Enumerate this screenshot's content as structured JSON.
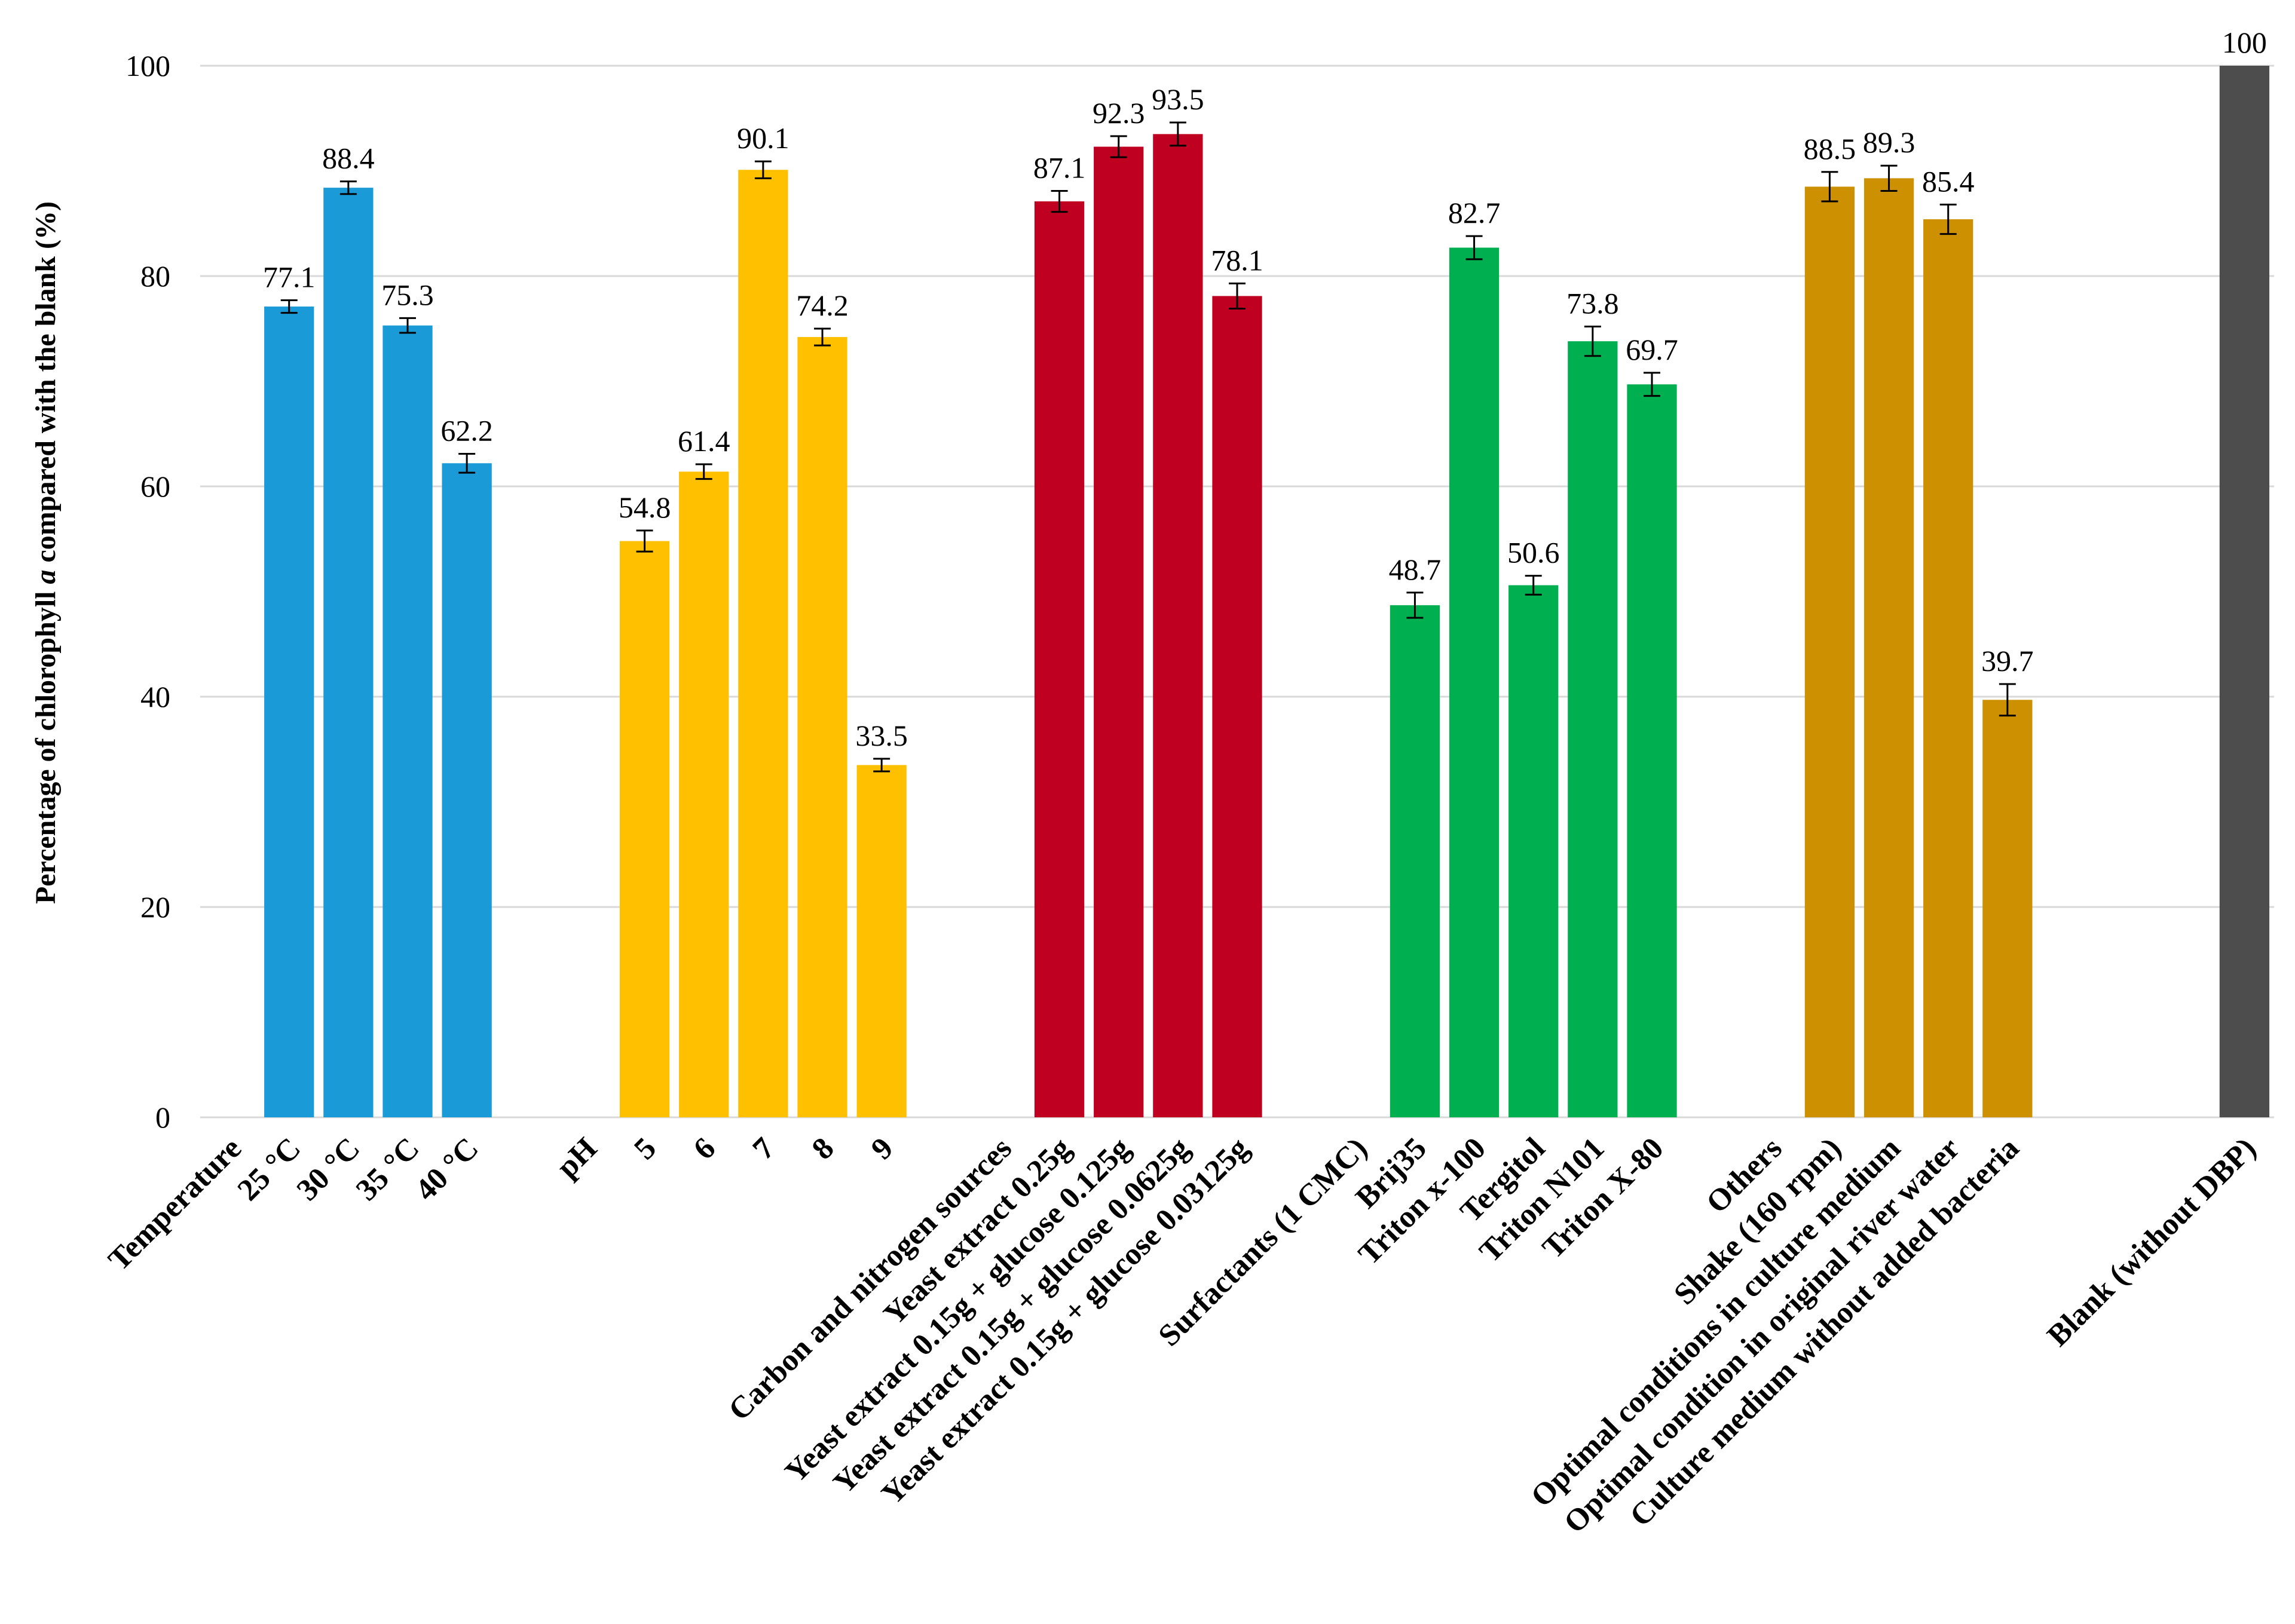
{
  "chart_data": {
    "type": "bar",
    "ylabel_prefix": "Percentage of chlorophyll",
    "ylabel_italic": "a",
    "ylabel_suffix": "compared with the blank (%)",
    "ylim": [
      0,
      100
    ],
    "yticks": [
      "0",
      "20",
      "40",
      "60",
      "80",
      "100"
    ],
    "colors": {
      "temperature": "#1a9bd7",
      "ph": "#ffc000",
      "carbon": "#c00020",
      "surfactants": "#00b050",
      "others": "#cc9000",
      "blank": "#4d4d4d"
    },
    "categories": [
      {
        "label": "Temperature",
        "group": "header"
      },
      {
        "label": "25 °C",
        "value": 77.1,
        "data_label": "77.1",
        "err": 0.6,
        "group": "temperature"
      },
      {
        "label": "30 °C",
        "value": 88.4,
        "data_label": "88.4",
        "err": 0.6,
        "group": "temperature"
      },
      {
        "label": "35 °C",
        "value": 75.3,
        "data_label": "75.3",
        "err": 0.7,
        "group": "temperature"
      },
      {
        "label": "40 °C",
        "value": 62.2,
        "data_label": "62.2",
        "err": 0.9,
        "group": "temperature"
      },
      {
        "label": "",
        "group": "gap"
      },
      {
        "label": "pH",
        "group": "header"
      },
      {
        "label": "5",
        "value": 54.8,
        "data_label": "54.8",
        "err": 1.0,
        "group": "ph"
      },
      {
        "label": "6",
        "value": 61.4,
        "data_label": "61.4",
        "err": 0.7,
        "group": "ph"
      },
      {
        "label": "7",
        "value": 90.1,
        "data_label": "90.1",
        "err": 0.8,
        "group": "ph"
      },
      {
        "label": "8",
        "value": 74.2,
        "data_label": "74.2",
        "err": 0.8,
        "group": "ph"
      },
      {
        "label": "9",
        "value": 33.5,
        "data_label": "33.5",
        "err": 0.6,
        "group": "ph"
      },
      {
        "label": "",
        "group": "gap"
      },
      {
        "label": "Carbon and nitrogen sources",
        "group": "header"
      },
      {
        "label": "Yeast extract 0.25g",
        "value": 87.1,
        "data_label": "87.1",
        "err": 1.0,
        "group": "carbon"
      },
      {
        "label": "Yeast extract 0.15g + glucose 0.125g",
        "value": 92.3,
        "data_label": "92.3",
        "err": 1.0,
        "group": "carbon"
      },
      {
        "label": "Yeast extract 0.15g + glucose 0.0625g",
        "value": 93.5,
        "data_label": "93.5",
        "err": 1.1,
        "group": "carbon"
      },
      {
        "label": "Yeast extract 0.15g + glucose 0.03125g",
        "value": 78.1,
        "data_label": "78.1",
        "err": 1.2,
        "group": "carbon"
      },
      {
        "label": "",
        "group": "gap"
      },
      {
        "label": "Surfactants (1 CMC)",
        "group": "header"
      },
      {
        "label": "Brij35",
        "value": 48.7,
        "data_label": "48.7",
        "err": 1.2,
        "group": "surfactants"
      },
      {
        "label": "Triton x-100",
        "value": 82.7,
        "data_label": "82.7",
        "err": 1.1,
        "group": "surfactants"
      },
      {
        "label": "Tergitol",
        "value": 50.6,
        "data_label": "50.6",
        "err": 0.9,
        "group": "surfactants"
      },
      {
        "label": "Triton N101",
        "value": 73.8,
        "data_label": "73.8",
        "err": 1.4,
        "group": "surfactants"
      },
      {
        "label": "Triton X-80",
        "value": 69.7,
        "data_label": "69.7",
        "err": 1.1,
        "group": "surfactants"
      },
      {
        "label": "",
        "group": "gap"
      },
      {
        "label": "Others",
        "group": "header"
      },
      {
        "label": "Shake (160 rpm)",
        "value": 88.5,
        "data_label": "88.5",
        "err": 1.4,
        "group": "others"
      },
      {
        "label": "Optimal conditions in culture medium",
        "value": 89.3,
        "data_label": "89.3",
        "err": 1.2,
        "group": "others"
      },
      {
        "label": "Optimal condition in original river water",
        "value": 85.4,
        "data_label": "85.4",
        "err": 1.4,
        "group": "others"
      },
      {
        "label": "Culture medium without added bacteria",
        "value": 39.7,
        "data_label": "39.7",
        "err": 1.5,
        "group": "others"
      },
      {
        "label": "",
        "group": "gap"
      },
      {
        "label": "",
        "group": "gap"
      },
      {
        "label": "",
        "group": "gap"
      },
      {
        "label": "Blank (without DBP)",
        "value": 100,
        "data_label": "100",
        "err": 0,
        "group": "blank"
      }
    ]
  }
}
